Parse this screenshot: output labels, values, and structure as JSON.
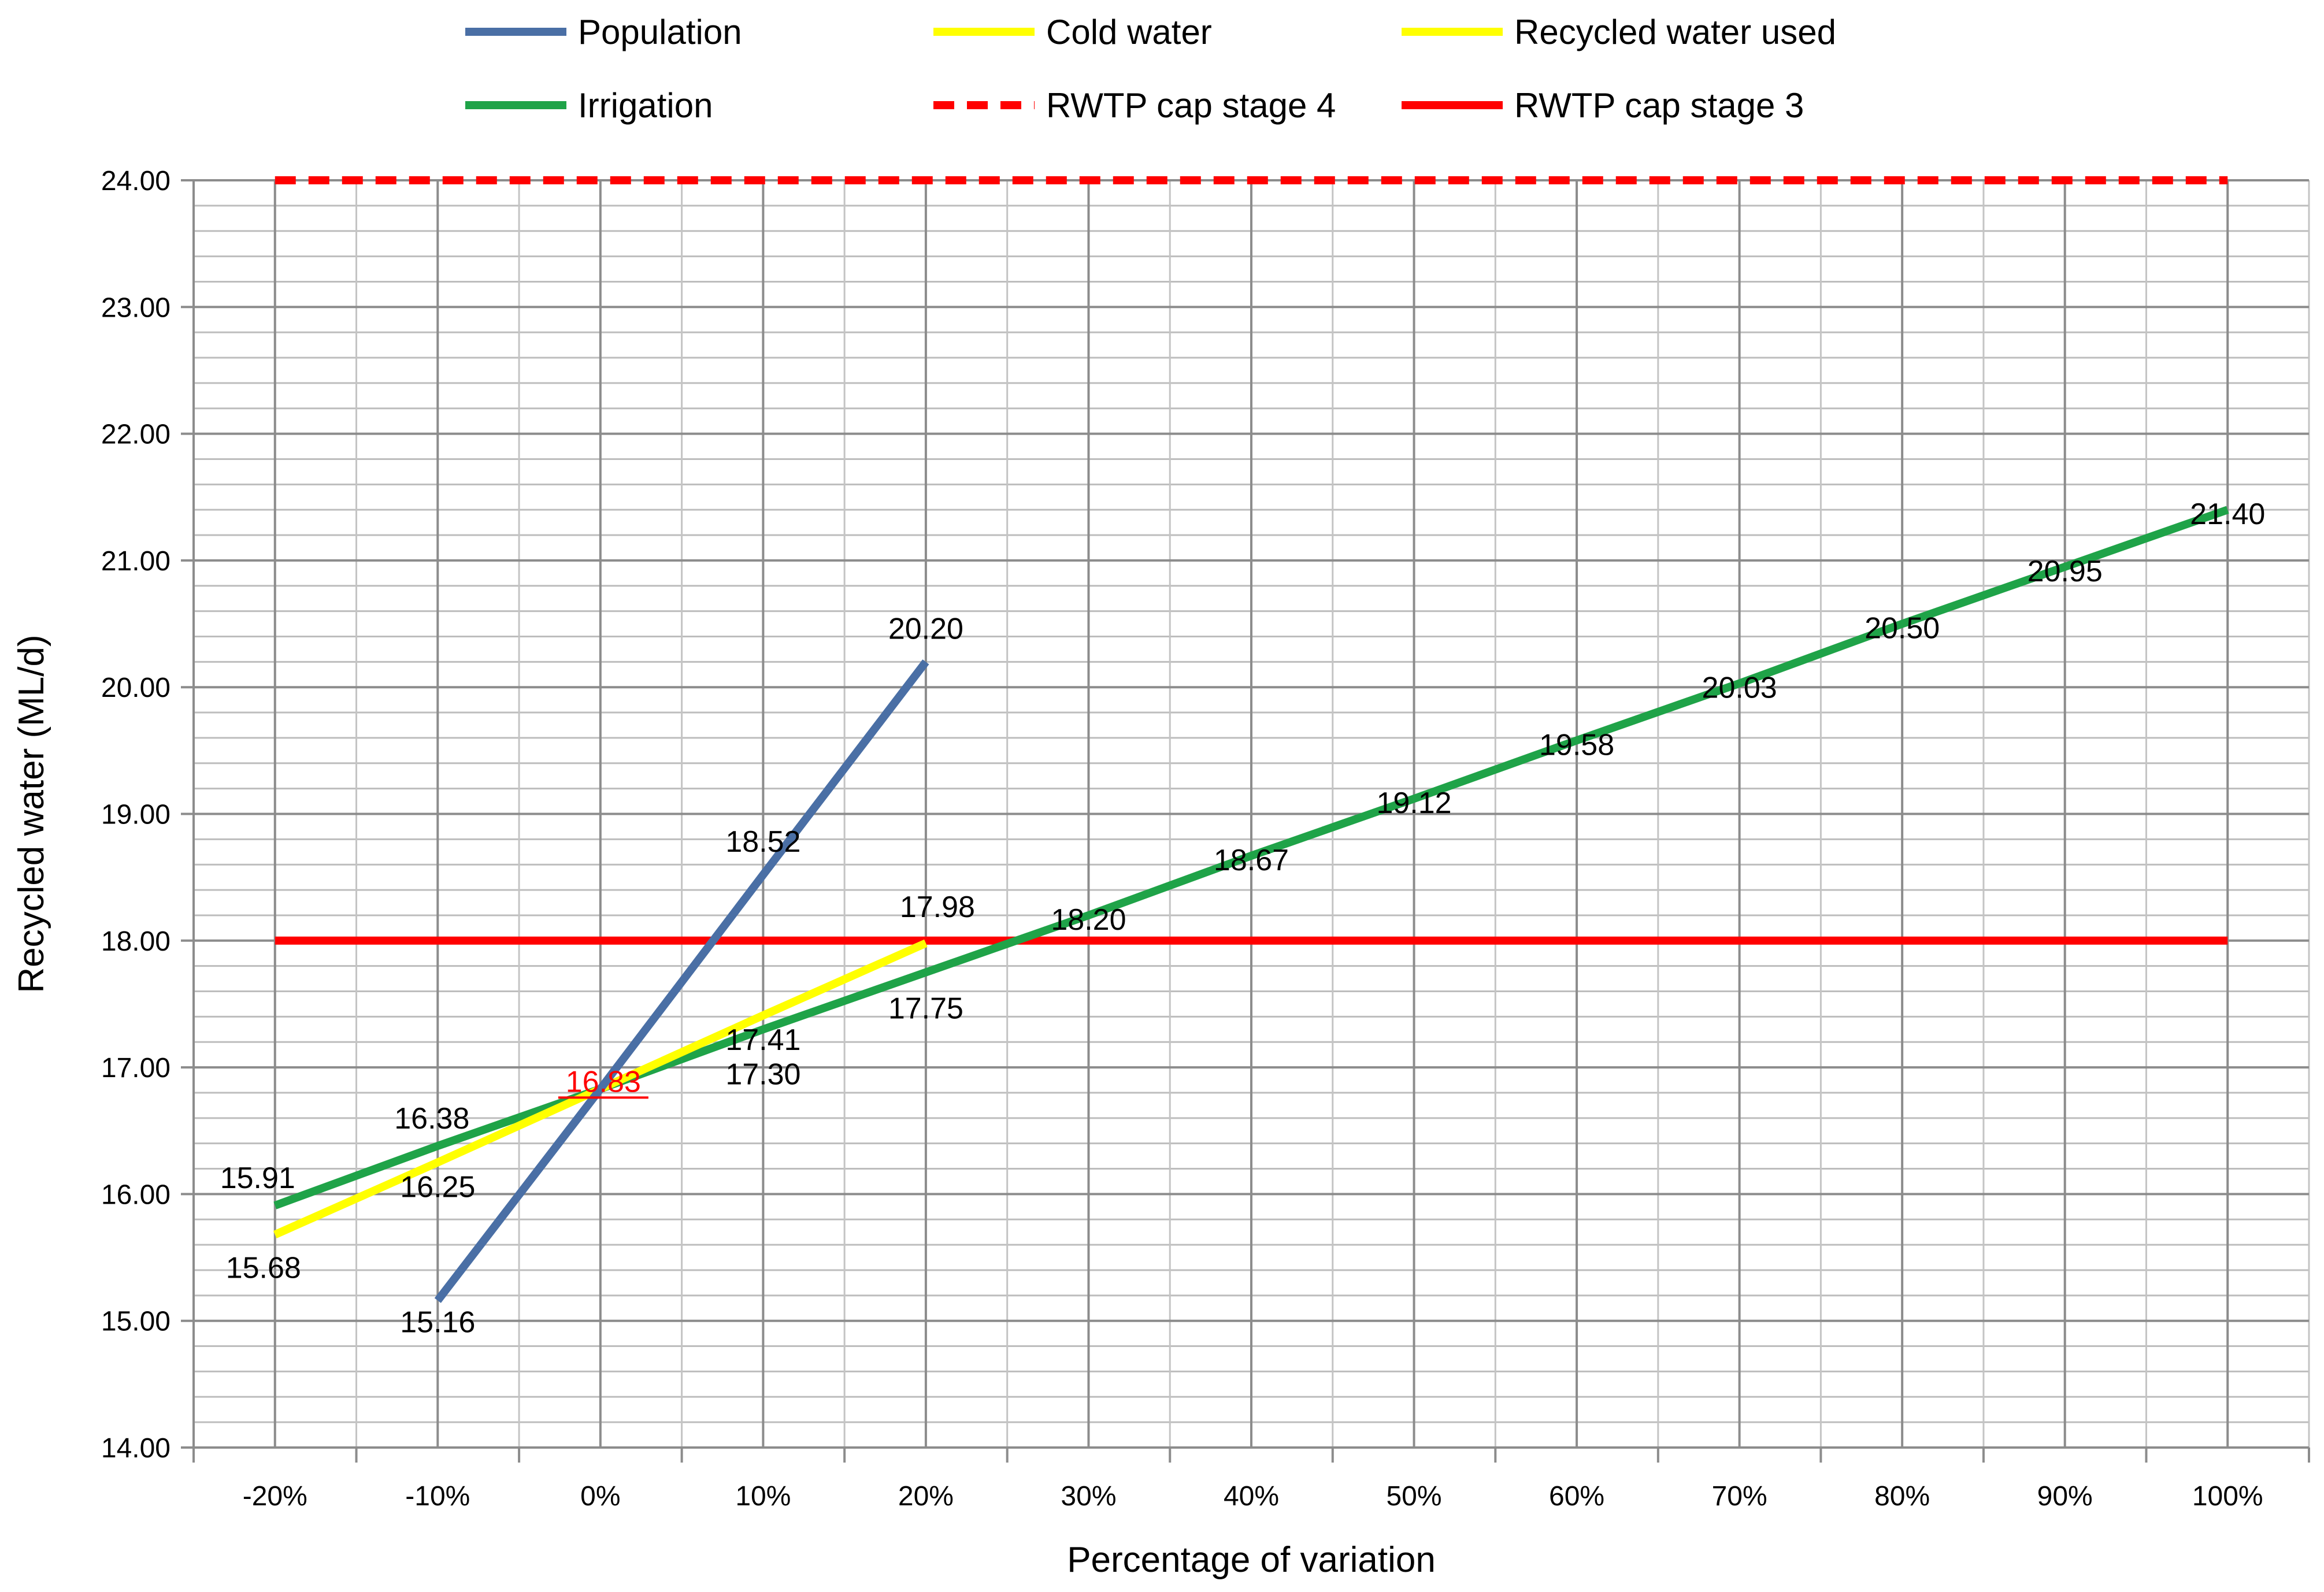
{
  "chart_data": {
    "type": "line",
    "xlabel": "Percentage of variation",
    "ylabel": "Recycled water (ML/d)",
    "x_categories": [
      "-20%",
      "-10%",
      "0%",
      "10%",
      "20%",
      "30%",
      "40%",
      "50%",
      "60%",
      "70%",
      "80%",
      "90%",
      "100%"
    ],
    "x_values": [
      -20,
      -10,
      0,
      10,
      20,
      30,
      40,
      50,
      60,
      70,
      80,
      90,
      100
    ],
    "ylim": [
      14,
      24
    ],
    "y_major_ticks": [
      "14.00",
      "15.00",
      "16.00",
      "17.00",
      "18.00",
      "19.00",
      "20.00",
      "21.00",
      "22.00",
      "23.00",
      "24.00"
    ],
    "y_minor_step": 0.2,
    "grid": true,
    "legend_position": "top",
    "series": [
      {
        "name": "Population",
        "color": "#4a6fa5",
        "dash": false,
        "x": [
          -10,
          0,
          10,
          20
        ],
        "y": [
          15.16,
          16.83,
          18.52,
          20.2
        ],
        "labels": [
          "15.16",
          "",
          "18.52",
          "20.20"
        ]
      },
      {
        "name": "Cold water",
        "color": "#ffff00",
        "dash": false,
        "x": [
          -20,
          -10,
          0,
          10,
          20
        ],
        "y": [
          15.68,
          16.25,
          16.83,
          17.41,
          17.98
        ],
        "labels": [
          "15.68",
          "16.25",
          "",
          "17.41",
          "17.98"
        ]
      },
      {
        "name": "Recycled water used",
        "color": "#ffff00",
        "dash": false,
        "x": [],
        "y": [],
        "labels": []
      },
      {
        "name": "Irrigation",
        "color": "#1fa348",
        "dash": false,
        "x": [
          -20,
          -10,
          0,
          10,
          20,
          30,
          40,
          50,
          60,
          70,
          80,
          90,
          100
        ],
        "y": [
          15.91,
          16.38,
          16.83,
          17.3,
          17.75,
          18.2,
          18.67,
          19.12,
          19.58,
          20.03,
          20.5,
          20.95,
          21.4
        ],
        "labels": [
          "15.91",
          "16.38",
          "",
          "17.30",
          "17.75",
          "18.20",
          "18.67",
          "19.12",
          "19.58",
          "20.03",
          "20.50",
          "20.95",
          "21.40"
        ]
      },
      {
        "name": "RWTP cap stage 4",
        "color": "#ff0000",
        "dash": true,
        "x": [
          -20,
          100
        ],
        "y": [
          24,
          24
        ],
        "labels": []
      },
      {
        "name": "RWTP cap stage 3",
        "color": "#ff0000",
        "dash": false,
        "x": [
          -20,
          100
        ],
        "y": [
          18,
          18
        ],
        "labels": []
      }
    ],
    "annotations": [
      {
        "text": "16.83",
        "x": 0,
        "y": 16.83,
        "color": "#ff0000",
        "underline": true
      }
    ]
  }
}
